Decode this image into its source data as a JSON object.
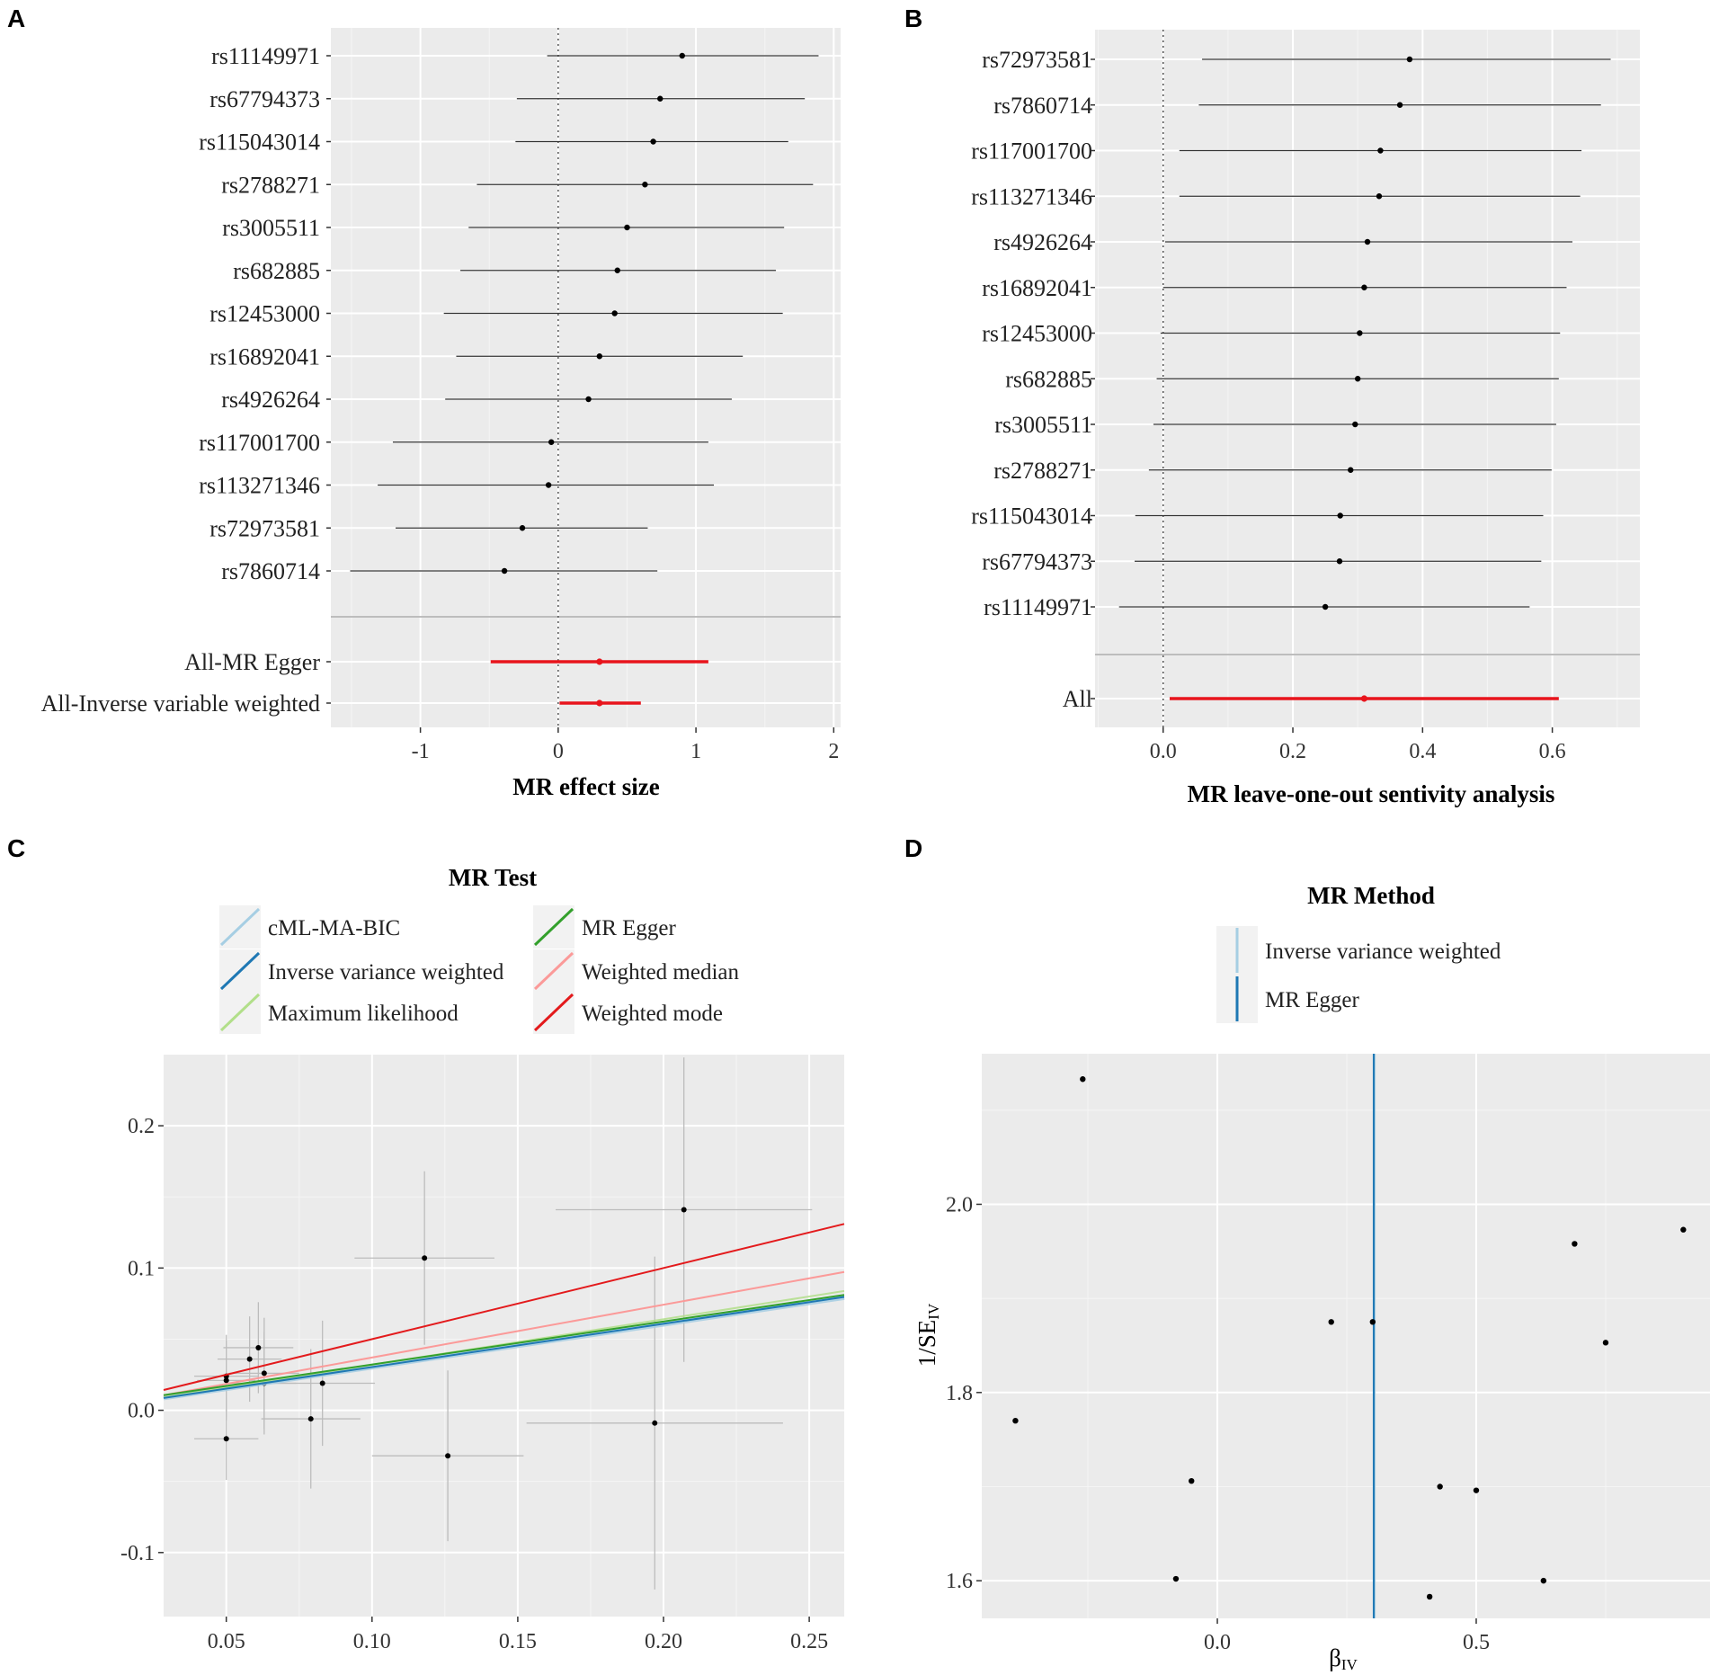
{
  "panels": {
    "A": "A",
    "B": "B",
    "C": "C",
    "D": "D"
  },
  "chart_data": [
    {
      "id": "A",
      "type": "forest",
      "xlabel": "MR effect size",
      "xlim": [
        -1.65,
        2.05
      ],
      "xticks": [
        -1,
        0,
        1,
        2
      ],
      "xtick_labels": [
        "-1",
        "0",
        "1",
        "2"
      ],
      "reference_line": 0,
      "snps": [
        {
          "label": "rs11149971",
          "b": 0.9,
          "lo": -0.08,
          "hi": 1.89
        },
        {
          "label": "rs67794373",
          "b": 0.74,
          "lo": -0.3,
          "hi": 1.79
        },
        {
          "label": "rs115043014",
          "b": 0.69,
          "lo": -0.31,
          "hi": 1.67
        },
        {
          "label": "rs2788271",
          "b": 0.63,
          "lo": -0.59,
          "hi": 1.85
        },
        {
          "label": "rs3005511",
          "b": 0.5,
          "lo": -0.65,
          "hi": 1.64
        },
        {
          "label": "rs682885",
          "b": 0.43,
          "lo": -0.71,
          "hi": 1.58
        },
        {
          "label": "rs12453000",
          "b": 0.41,
          "lo": -0.83,
          "hi": 1.63
        },
        {
          "label": "rs16892041",
          "b": 0.3,
          "lo": -0.74,
          "hi": 1.34
        },
        {
          "label": "rs4926264",
          "b": 0.22,
          "lo": -0.82,
          "hi": 1.26
        },
        {
          "label": "rs117001700",
          "b": -0.05,
          "lo": -1.2,
          "hi": 1.09
        },
        {
          "label": "rs113271346",
          "b": -0.07,
          "lo": -1.31,
          "hi": 1.13
        },
        {
          "label": "rs72973581",
          "b": -0.26,
          "lo": -1.18,
          "hi": 0.65
        },
        {
          "label": "rs7860714",
          "b": -0.39,
          "lo": -1.51,
          "hi": 0.72
        }
      ],
      "summary": [
        {
          "label": "All-MR Egger",
          "b": 0.3,
          "lo": -0.49,
          "hi": 1.09
        },
        {
          "label": "All-Inverse variable weighted",
          "b": 0.3,
          "lo": 0.01,
          "hi": 0.6
        }
      ]
    },
    {
      "id": "B",
      "type": "forest",
      "xlabel": "MR leave-one-out sentivity analysis",
      "xlim": [
        -0.105,
        0.735
      ],
      "xticks": [
        0,
        0.2,
        0.4,
        0.6
      ],
      "xtick_labels": [
        "0.0",
        "0.2",
        "0.4",
        "0.6"
      ],
      "reference_line": 0,
      "snps": [
        {
          "label": "rs72973581",
          "b": 0.38,
          "lo": 0.06,
          "hi": 0.69
        },
        {
          "label": "rs7860714",
          "b": 0.365,
          "lo": 0.055,
          "hi": 0.675
        },
        {
          "label": "rs117001700",
          "b": 0.335,
          "lo": 0.025,
          "hi": 0.645
        },
        {
          "label": "rs113271346",
          "b": 0.333,
          "lo": 0.025,
          "hi": 0.643
        },
        {
          "label": "rs4926264",
          "b": 0.315,
          "lo": 0.003,
          "hi": 0.631
        },
        {
          "label": "rs16892041",
          "b": 0.31,
          "lo": 0.0,
          "hi": 0.622
        },
        {
          "label": "rs12453000",
          "b": 0.303,
          "lo": -0.004,
          "hi": 0.612
        },
        {
          "label": "rs682885",
          "b": 0.3,
          "lo": -0.01,
          "hi": 0.61
        },
        {
          "label": "rs3005511",
          "b": 0.296,
          "lo": -0.015,
          "hi": 0.606
        },
        {
          "label": "rs2788271",
          "b": 0.289,
          "lo": -0.022,
          "hi": 0.599
        },
        {
          "label": "rs115043014",
          "b": 0.273,
          "lo": -0.043,
          "hi": 0.586
        },
        {
          "label": "rs67794373",
          "b": 0.272,
          "lo": -0.044,
          "hi": 0.583
        },
        {
          "label": "rs11149971",
          "b": 0.25,
          "lo": -0.068,
          "hi": 0.565
        }
      ],
      "summary": [
        {
          "label": "All",
          "b": 0.31,
          "lo": 0.01,
          "hi": 0.61
        }
      ]
    },
    {
      "id": "C",
      "type": "scatter",
      "legend_title": "MR Test",
      "xlim": [
        0.0285,
        0.262
      ],
      "ylim": [
        -0.145,
        0.25
      ],
      "xticks": [
        0.05,
        0.1,
        0.15,
        0.2,
        0.25
      ],
      "xtick_labels": [
        "0.05",
        "0.10",
        "0.15",
        "0.20",
        "0.25"
      ],
      "yticks": [
        -0.1,
        0.0,
        0.1,
        0.2
      ],
      "ytick_labels": [
        "-0.1",
        "0.0",
        "0.1",
        "0.2"
      ],
      "methods": [
        {
          "name": "cML-MA-BIC",
          "color": "#a6cee3",
          "slope": 0.302,
          "intercept": 0
        },
        {
          "name": "Inverse variance weighted",
          "color": "#1f78b4",
          "slope": 0.304,
          "intercept": 0
        },
        {
          "name": "Maximum likelihood",
          "color": "#b2df8a",
          "slope": 0.32,
          "intercept": 0
        },
        {
          "name": "MR Egger",
          "color": "#33a02c",
          "slope": 0.302,
          "intercept": 0.002
        },
        {
          "name": "Weighted median",
          "color": "#fb9a99",
          "slope": 0.371,
          "intercept": 0
        },
        {
          "name": "Weighted mode",
          "color": "#e31a1c",
          "slope": 0.5,
          "intercept": 0
        }
      ],
      "points": [
        {
          "x": 0.207,
          "y": 0.141,
          "xse": 0.044,
          "yse": 0.107
        },
        {
          "x": 0.118,
          "y": 0.107,
          "xse": 0.024,
          "yse": 0.061
        },
        {
          "x": 0.061,
          "y": 0.044,
          "xse": 0.012,
          "yse": 0.032
        },
        {
          "x": 0.058,
          "y": 0.036,
          "xse": 0.011,
          "yse": 0.03
        },
        {
          "x": 0.063,
          "y": 0.026,
          "xse": 0.012,
          "yse": 0.039
        },
        {
          "x": 0.05,
          "y": 0.024,
          "xse": 0.011,
          "yse": 0.029
        },
        {
          "x": 0.05,
          "y": 0.021,
          "xse": 0.01,
          "yse": 0.028
        },
        {
          "x": 0.063,
          "y": 0.019,
          "xse": 0.011,
          "yse": 0.036
        },
        {
          "x": 0.083,
          "y": 0.019,
          "xse": 0.018,
          "yse": 0.044
        },
        {
          "x": 0.079,
          "y": -0.006,
          "xse": 0.017,
          "yse": 0.049
        },
        {
          "x": 0.05,
          "y": -0.02,
          "xse": 0.011,
          "yse": 0.029
        },
        {
          "x": 0.126,
          "y": -0.032,
          "xse": 0.026,
          "yse": 0.06
        },
        {
          "x": 0.197,
          "y": -0.009,
          "xse": 0.044,
          "yse": 0.117
        }
      ]
    },
    {
      "id": "D",
      "type": "funnel",
      "legend_title": "MR Method",
      "xlabel_main": "β",
      "xlabel_sub": "IV",
      "ylabel_main": "1/SE",
      "ylabel_sub": "IV",
      "xlim": [
        -0.455,
        0.955
      ],
      "ylim": [
        1.56,
        2.16
      ],
      "xticks": [
        0.0,
        0.5
      ],
      "xtick_labels": [
        "0.0",
        "0.5"
      ],
      "yticks": [
        1.6,
        1.8,
        2.0
      ],
      "ytick_labels": [
        "1.6",
        "1.8",
        "2.0"
      ],
      "methods": [
        {
          "name": "Inverse variance weighted",
          "color": "#a6cee3",
          "value": 0.304
        },
        {
          "name": "MR Egger",
          "color": "#1f78b4",
          "value": 0.302
        }
      ],
      "points": [
        {
          "x": -0.26,
          "y": 2.133
        },
        {
          "x": 0.9,
          "y": 1.973
        },
        {
          "x": 0.69,
          "y": 1.958
        },
        {
          "x": 0.22,
          "y": 1.875
        },
        {
          "x": 0.3,
          "y": 1.875
        },
        {
          "x": 0.75,
          "y": 1.853
        },
        {
          "x": -0.39,
          "y": 1.77
        },
        {
          "x": -0.05,
          "y": 1.706
        },
        {
          "x": 0.43,
          "y": 1.7
        },
        {
          "x": 0.5,
          "y": 1.696
        },
        {
          "x": -0.08,
          "y": 1.602
        },
        {
          "x": 0.63,
          "y": 1.6
        },
        {
          "x": 0.41,
          "y": 1.583
        }
      ]
    }
  ]
}
